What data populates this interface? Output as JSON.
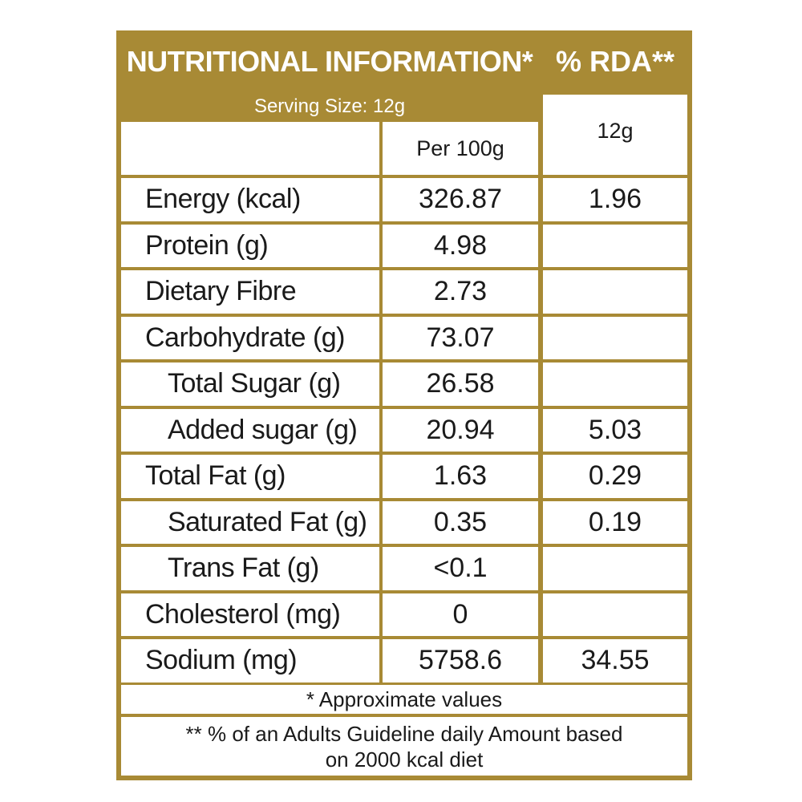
{
  "header": {
    "title": "NUTRITIONAL INFORMATION*",
    "rda": "% RDA**"
  },
  "serving_size": "Serving Size:  12g",
  "columns": {
    "per100": "Per  100g",
    "rda_amount": "12g"
  },
  "rows": [
    {
      "label": "Energy (kcal)",
      "per100": "326.87",
      "rda": "1.96"
    },
    {
      "label": "Protein (g)",
      "per100": "4.98",
      "rda": ""
    },
    {
      "label": "Dietary Fibre",
      "per100": "2.73",
      "rda": ""
    },
    {
      "label": "Carbohydrate (g)",
      "per100": "73.07",
      "rda": ""
    },
    {
      "label": "Total Sugar (g)",
      "per100": "26.58",
      "rda": ""
    },
    {
      "label": "Added sugar (g)",
      "per100": "20.94",
      "rda": "5.03"
    },
    {
      "label": "Total Fat (g)",
      "per100": "1.63",
      "rda": "0.29"
    },
    {
      "label": "Saturated Fat (g)",
      "per100": "0.35",
      "rda": "0.19"
    },
    {
      "label": "Trans Fat (g)",
      "per100": "<0.1",
      "rda": ""
    },
    {
      "label": "Cholesterol (mg)",
      "per100": "0",
      "rda": ""
    },
    {
      "label": "Sodium (mg)",
      "per100": "5758.6",
      "rda": "34.55"
    }
  ],
  "footnotes": {
    "approx": "* Approximate values",
    "rda_line1": "** % of an Adults Guideline daily Amount based",
    "rda_line2": "on 2000 kcal diet"
  },
  "colors": {
    "border_gold": "#a88a35"
  }
}
